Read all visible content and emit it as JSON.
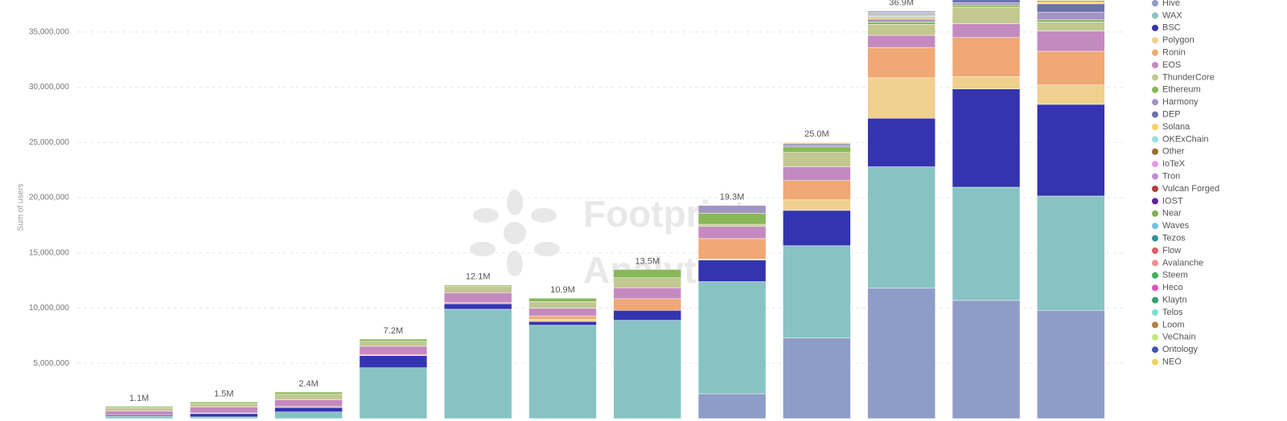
{
  "chart_data": {
    "type": "stacked_bar",
    "y_label": "Sum of users",
    "watermark": [
      "Footprint",
      "Analytics"
    ],
    "categories": [
      null,
      null,
      null,
      null,
      null,
      null,
      null,
      null,
      null,
      null,
      null,
      null
    ],
    "ylim": [
      0,
      37900000
    ],
    "yticks": [
      {
        "value": 5000000,
        "label": "5,000,000"
      },
      {
        "value": 10000000,
        "label": "10,000,000"
      },
      {
        "value": 15000000,
        "label": "15,000,000"
      },
      {
        "value": 20000000,
        "label": "20,000,000"
      },
      {
        "value": 25000000,
        "label": "25,000,000"
      },
      {
        "value": 30000000,
        "label": "30,000,000"
      },
      {
        "value": 35000000,
        "label": "35,000,000"
      }
    ],
    "grid": true,
    "legend": "right",
    "totals": [
      1100000,
      1500000,
      2400000,
      7200000,
      12100000,
      10900000,
      13500000,
      19300000,
      25000000,
      36900000,
      null,
      null
    ],
    "total_labels": [
      "1.1M",
      "1.5M",
      "2.4M",
      "7.2M",
      "12.1M",
      "10.9M",
      "13.5M",
      "19.3M",
      "25.0M",
      "36.9M",
      null,
      null
    ],
    "series": [
      {
        "name": "Hive",
        "color": "#8e9dc8",
        "values": [
          0,
          0,
          0,
          0,
          0,
          0,
          0,
          2250000,
          7300000,
          11800000,
          10700000,
          9800000
        ]
      },
      {
        "name": "WAX",
        "color": "#88c3c3",
        "values": [
          200000,
          150000,
          600000,
          4600000,
          9900000,
          8450000,
          8900000,
          10150000,
          8350000,
          11000000,
          10250000,
          10350000
        ]
      },
      {
        "name": "BSC",
        "color": "#3434b0",
        "values": [
          100000,
          300000,
          400000,
          1100000,
          500000,
          350000,
          900000,
          1950000,
          3200000,
          4400000,
          8900000,
          8300000
        ]
      },
      {
        "name": "Polygon",
        "color": "#f0d08e",
        "values": [
          0,
          50000,
          0,
          0,
          0,
          200000,
          0,
          100000,
          950000,
          3650000,
          1100000,
          1750000
        ]
      },
      {
        "name": "Ronin",
        "color": "#f0a874",
        "values": [
          0,
          0,
          100000,
          100000,
          100000,
          300000,
          1050000,
          1850000,
          1750000,
          2750000,
          3550000,
          3050000
        ]
      },
      {
        "name": "EOS",
        "color": "#c48ac0",
        "values": [
          400000,
          550000,
          600000,
          750000,
          900000,
          700000,
          1000000,
          1100000,
          1250000,
          1100000,
          1250000,
          1850000
        ]
      },
      {
        "name": "ThunderCore",
        "color": "#c2c890",
        "values": [
          300000,
          300000,
          500000,
          450000,
          600000,
          600000,
          900000,
          200000,
          1300000,
          1000000,
          1500000,
          800000
        ]
      },
      {
        "name": "Ethereum",
        "color": "#88b858",
        "values": [
          100000,
          150000,
          200000,
          200000,
          100000,
          300000,
          750000,
          1000000,
          500000,
          200000,
          200000,
          200000
        ]
      },
      {
        "name": "Harmony",
        "color": "#a394c4",
        "values": [
          0,
          0,
          0,
          0,
          0,
          0,
          0,
          700000,
          200000,
          200000,
          200000,
          700000
        ]
      },
      {
        "name": "DEP",
        "color": "#6a72a8",
        "values": [
          0,
          0,
          0,
          0,
          0,
          0,
          0,
          0,
          100000,
          100000,
          300000,
          750000
        ]
      },
      {
        "name": "Solana",
        "color": "#f8d060",
        "values": [
          0,
          0,
          0,
          0,
          0,
          0,
          0,
          0,
          100000,
          200000,
          0,
          200000
        ]
      },
      {
        "name": "OKExChain",
        "color": "#98dede",
        "values": [
          0,
          0,
          0,
          0,
          0,
          0,
          0,
          0,
          0,
          200000,
          0,
          0
        ]
      },
      {
        "name": "Other",
        "color": "#a06e30",
        "values": [
          0,
          0,
          0,
          0,
          0,
          0,
          0,
          0,
          0,
          100000,
          0,
          100000
        ]
      },
      {
        "name": "IoTeX",
        "color": "#e898e0",
        "values": [
          0,
          0,
          0,
          0,
          0,
          0,
          0,
          0,
          0,
          0,
          0,
          0
        ]
      },
      {
        "name": "Tron",
        "color": "#b890d8",
        "values": [
          0,
          0,
          0,
          0,
          0,
          0,
          0,
          0,
          0,
          100000,
          0,
          0
        ]
      },
      {
        "name": "Vulcan Forged",
        "color": "#b04040",
        "values": [
          0,
          0,
          0,
          0,
          0,
          0,
          0,
          0,
          0,
          0,
          0,
          0
        ]
      },
      {
        "name": "IOST",
        "color": "#6020a0",
        "values": [
          0,
          0,
          0,
          0,
          0,
          0,
          0,
          0,
          0,
          0,
          0,
          0
        ]
      },
      {
        "name": "Near",
        "color": "#80b050",
        "values": [
          0,
          0,
          0,
          0,
          0,
          0,
          0,
          0,
          0,
          100000,
          0,
          0
        ]
      },
      {
        "name": "Waves",
        "color": "#70c0e8",
        "values": [
          0,
          0,
          0,
          0,
          0,
          0,
          0,
          0,
          0,
          0,
          0,
          0
        ]
      },
      {
        "name": "Tezos",
        "color": "#3090a0",
        "values": [
          0,
          0,
          0,
          0,
          0,
          0,
          0,
          0,
          0,
          0,
          0,
          0
        ]
      },
      {
        "name": "Flow",
        "color": "#e06060",
        "values": [
          0,
          0,
          0,
          0,
          0,
          0,
          0,
          0,
          0,
          0,
          0,
          0
        ]
      },
      {
        "name": "Avalanche",
        "color": "#f09090",
        "values": [
          0,
          0,
          0,
          0,
          0,
          0,
          0,
          0,
          0,
          0,
          0,
          0
        ]
      },
      {
        "name": "Steem",
        "color": "#40b060",
        "values": [
          0,
          0,
          0,
          0,
          0,
          0,
          0,
          0,
          0,
          0,
          0,
          0
        ]
      },
      {
        "name": "Heco",
        "color": "#e050c0",
        "values": [
          0,
          0,
          0,
          0,
          0,
          0,
          0,
          0,
          0,
          0,
          0,
          0
        ]
      },
      {
        "name": "Klaytn",
        "color": "#30a070",
        "values": [
          0,
          0,
          0,
          0,
          0,
          0,
          0,
          0,
          0,
          0,
          0,
          0
        ]
      },
      {
        "name": "Telos",
        "color": "#80e0d0",
        "values": [
          0,
          0,
          0,
          0,
          0,
          0,
          0,
          0,
          0,
          0,
          0,
          0
        ]
      },
      {
        "name": "Loom",
        "color": "#b08040",
        "values": [
          0,
          0,
          0,
          0,
          0,
          0,
          0,
          0,
          0,
          0,
          0,
          0
        ]
      },
      {
        "name": "VeChain",
        "color": "#c0e880",
        "values": [
          0,
          0,
          0,
          0,
          0,
          0,
          0,
          0,
          0,
          0,
          0,
          0
        ]
      },
      {
        "name": "Ontology",
        "color": "#4050b0",
        "values": [
          0,
          0,
          0,
          0,
          0,
          0,
          0,
          0,
          0,
          0,
          0,
          0
        ]
      },
      {
        "name": "NEO",
        "color": "#f0d060",
        "values": [
          0,
          0,
          0,
          0,
          0,
          0,
          0,
          0,
          0,
          0,
          0,
          0
        ]
      }
    ]
  }
}
